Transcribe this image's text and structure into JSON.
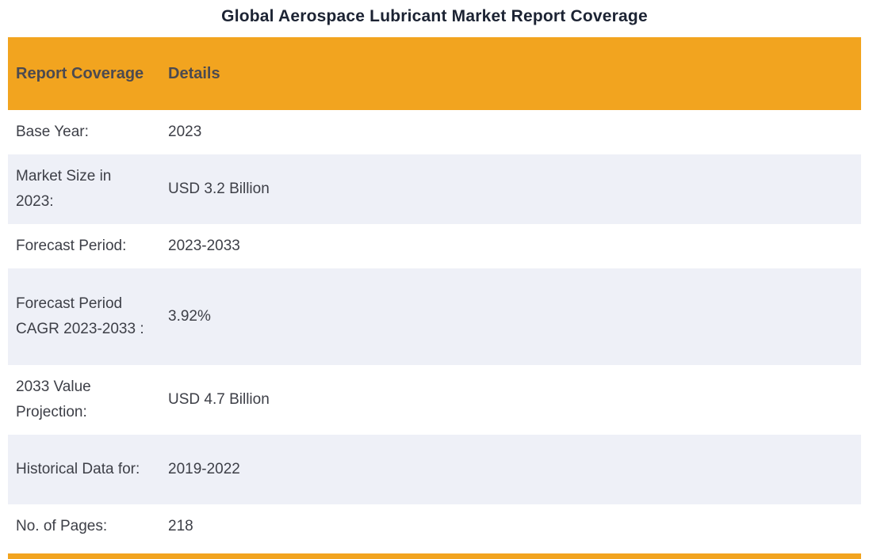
{
  "page": {
    "title": "Global Aerospace Lubricant Market Report Coverage"
  },
  "table": {
    "headers": {
      "col1": "Report Coverage",
      "col2": "Details"
    },
    "rows": [
      {
        "label": "Base Year:",
        "value": "2023"
      },
      {
        "label": "Market Size in 2023:",
        "value": "USD 3.2 Billion"
      },
      {
        "label": "Forecast Period:",
        "value": "2023-2033"
      },
      {
        "label": "Forecast Period CAGR 2023-2033 :",
        "value": "3.92%"
      },
      {
        "label": "2033 Value Projection:",
        "value": "USD 4.7 Billion"
      },
      {
        "label": "Historical Data for:",
        "value": "2019-2022"
      },
      {
        "label": "No. of Pages:",
        "value": "218"
      }
    ]
  },
  "colors": {
    "header_bg": "#f2a41f",
    "alt_row_bg": "#eef0f7",
    "title_text": "#1c2333",
    "body_text": "#3d3f47",
    "header_text": "#4c4a50"
  }
}
